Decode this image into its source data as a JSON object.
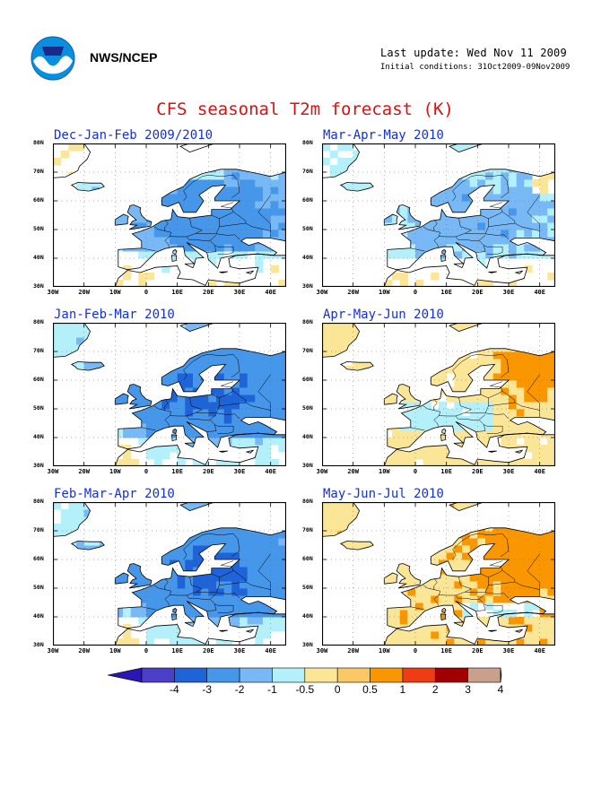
{
  "header": {
    "agency": "NWS/NCEP",
    "last_update": "Last update: Wed Nov 11 2009",
    "initial_conditions": "Initial conditions: 31Oct2009-09Nov2009",
    "main_title": "CFS seasonal T2m forecast (K)"
  },
  "panels": [
    {
      "title": "Dec-Jan-Feb 2009/2010",
      "anomaly": "cold"
    },
    {
      "title": "Mar-Apr-May 2010",
      "anomaly": "cold-weak"
    },
    {
      "title": "Jan-Feb-Mar 2010",
      "anomaly": "cold-strong"
    },
    {
      "title": "Apr-May-Jun 2010",
      "anomaly": "warm"
    },
    {
      "title": "Feb-Mar-Apr 2010",
      "anomaly": "cold-strong"
    },
    {
      "title": "May-Jun-Jul 2010",
      "anomaly": "warm-strong"
    }
  ],
  "axes": {
    "lat_labels": [
      "80N",
      "70N",
      "60N",
      "50N",
      "40N",
      "30N"
    ],
    "lon_labels": [
      "30W",
      "20W",
      "10W",
      "0",
      "10E",
      "20E",
      "30E",
      "40E"
    ]
  },
  "colorbar": {
    "labels": [
      "-4",
      "-3",
      "-2",
      "-1",
      "-0.5",
      "0",
      "0.5",
      "1",
      "2",
      "3",
      "4"
    ],
    "colors": [
      "#2a17b3",
      "#4b3ec8",
      "#1e64d8",
      "#4696ea",
      "#78b9f5",
      "#b4f0fa",
      "#fae696",
      "#fac864",
      "#fa9600",
      "#f03c14",
      "#a00000",
      "#c8a08c",
      "#6e4632"
    ]
  }
}
